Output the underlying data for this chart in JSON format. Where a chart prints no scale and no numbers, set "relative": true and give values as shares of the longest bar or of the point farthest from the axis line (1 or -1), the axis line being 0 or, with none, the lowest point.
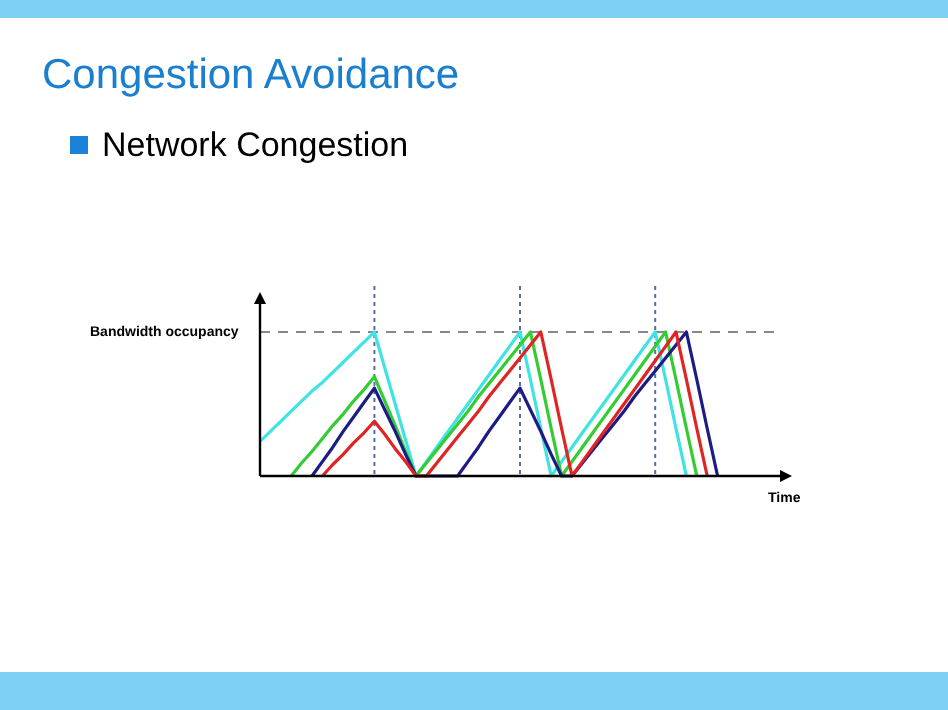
{
  "chart_data": {
    "type": "line",
    "title": "Congestion Avoidance",
    "subtitle": "Network Congestion",
    "xlabel": "Time",
    "ylabel": "Bandwidth occupancy",
    "relative": true,
    "marker": "none",
    "line_style": "solid",
    "categories": [
      null,
      null,
      null,
      null,
      null,
      null,
      null,
      null,
      null,
      null,
      null,
      null,
      null,
      null,
      null,
      null,
      null,
      null,
      null,
      null,
      null,
      null,
      null,
      null,
      null,
      null,
      null,
      null,
      null,
      null,
      null,
      null,
      null,
      null,
      null,
      null,
      null,
      null,
      null,
      null,
      null,
      null,
      null,
      null,
      null,
      null,
      null,
      null,
      null,
      null,
      null
    ],
    "series": [
      {
        "color": "#3fe3e3",
        "values": [
          0.24,
          0.31,
          0.38,
          0.45,
          0.52,
          0.59,
          0.65,
          0.72,
          0.79,
          0.86,
          0.93,
          1,
          0.75,
          0.5,
          0.25,
          0,
          0.1,
          0.2,
          0.3,
          0.4,
          0.5,
          0.6,
          0.7,
          0.8,
          0.9,
          1,
          0.67,
          0.33,
          0,
          0.1,
          0.2,
          0.3,
          0.4,
          0.5,
          0.6,
          0.7,
          0.8,
          0.9,
          1,
          0.67,
          0.33,
          0,
          null,
          null,
          null,
          null,
          null,
          null,
          null,
          null,
          null
        ]
      },
      {
        "color": "#33cc33",
        "values": [
          null,
          null,
          null,
          0,
          0.09,
          0.17,
          0.26,
          0.35,
          0.43,
          0.52,
          0.6,
          0.69,
          0.52,
          0.35,
          0.17,
          0,
          0.09,
          0.18,
          0.27,
          0.36,
          0.45,
          0.55,
          0.64,
          0.73,
          0.82,
          0.91,
          1,
          0.67,
          0.33,
          0,
          0.1,
          0.2,
          0.3,
          0.4,
          0.5,
          0.6,
          0.7,
          0.8,
          0.9,
          1,
          0.67,
          0.33,
          0,
          null,
          null,
          null,
          null,
          null,
          null,
          null,
          null
        ]
      },
      {
        "color": "#1c1c84",
        "values": [
          null,
          null,
          null,
          null,
          null,
          0,
          0.1,
          0.2,
          0.31,
          0.41,
          0.51,
          0.61,
          0.46,
          0.31,
          0.15,
          0,
          0,
          0,
          0,
          0,
          0.1,
          0.2,
          0.31,
          0.41,
          0.51,
          0.61,
          0.46,
          0.31,
          0.15,
          0,
          0,
          0.09,
          0.18,
          0.27,
          0.36,
          0.45,
          0.55,
          0.64,
          0.73,
          0.82,
          0.91,
          1,
          0.67,
          0.33,
          0,
          null,
          null,
          null,
          null,
          null,
          null
        ]
      },
      {
        "color": "#e02424",
        "values": [
          null,
          null,
          null,
          null,
          null,
          null,
          0,
          0.08,
          0.15,
          0.23,
          0.3,
          0.38,
          0.29,
          0.19,
          0.1,
          0,
          0,
          0.09,
          0.18,
          0.27,
          0.36,
          0.45,
          0.55,
          0.64,
          0.73,
          0.82,
          0.91,
          1,
          0.67,
          0.33,
          0,
          0.1,
          0.2,
          0.3,
          0.4,
          0.5,
          0.6,
          0.7,
          0.8,
          0.9,
          1,
          0.67,
          0.33,
          0,
          null,
          null,
          null,
          null,
          null,
          null,
          null
        ]
      }
    ],
    "ref_lines": [
      {
        "axis": "y",
        "value": 1,
        "color": "#888888",
        "line_style": "dashed"
      }
    ],
    "grid": "x"
  }
}
